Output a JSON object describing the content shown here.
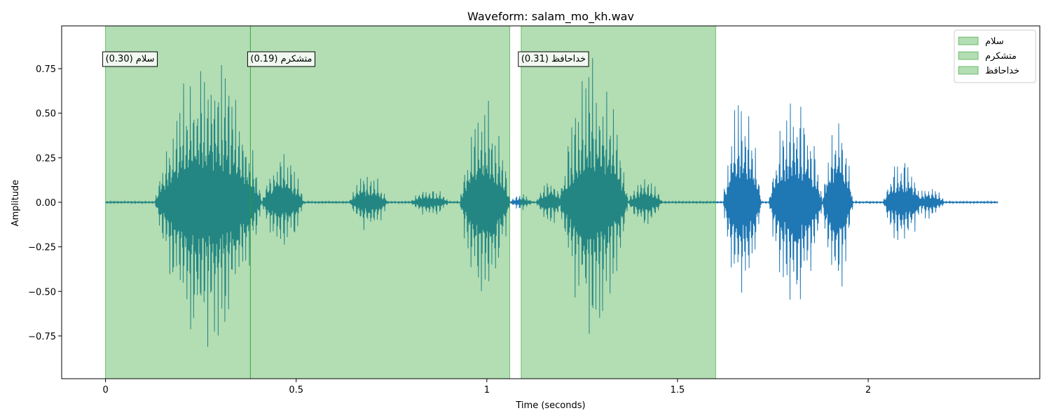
{
  "chart_data": {
    "type": "line",
    "title": "Waveform: salam_mo_kh.wav",
    "xlabel": "Time (seconds)",
    "ylabel": "Amplitude",
    "xlim": [
      -0.115,
      2.45
    ],
    "ylim": [
      -0.99,
      0.99
    ],
    "xticks": [
      {
        "value": 0,
        "label": "0"
      },
      {
        "value": 0.5,
        "label": "0.5"
      },
      {
        "value": 1,
        "label": "1"
      },
      {
        "value": 1.5,
        "label": "1.5"
      },
      {
        "value": 2,
        "label": "2"
      }
    ],
    "yticks": [
      {
        "value": -0.75,
        "label": "−0.75"
      },
      {
        "value": -0.5,
        "label": "−0.50"
      },
      {
        "value": -0.25,
        "label": "−0.25"
      },
      {
        "value": 0,
        "label": "0.00"
      },
      {
        "value": 0.25,
        "label": "0.25"
      },
      {
        "value": 0.5,
        "label": "0.50"
      },
      {
        "value": 0.75,
        "label": "0.75"
      }
    ],
    "grid": false,
    "legend_position": "top-right",
    "duration": 2.34,
    "waveform_color": "#1f77b4",
    "region_color": "#2ca02c",
    "regions": [
      {
        "label": "سلام",
        "start": 0.0,
        "end": 0.38,
        "score": "0.30",
        "annotation": "سلام (0.30)"
      },
      {
        "label": "متشکرم",
        "start": 0.38,
        "end": 1.06,
        "score": "0.19",
        "annotation": "متشکرم (0.19)"
      },
      {
        "label": "خداحافظ",
        "start": 1.09,
        "end": 1.6,
        "score": "0.31",
        "annotation": "خداحافظ (0.31)"
      }
    ],
    "bursts": [
      {
        "start": 0.13,
        "end": 0.41,
        "peak": 0.9
      },
      {
        "start": 0.41,
        "end": 0.52,
        "peak": 0.3
      },
      {
        "start": 0.64,
        "end": 0.74,
        "peak": 0.18
      },
      {
        "start": 0.8,
        "end": 0.9,
        "peak": 0.09
      },
      {
        "start": 0.93,
        "end": 1.06,
        "peak": 0.62
      },
      {
        "start": 1.06,
        "end": 1.12,
        "peak": 0.05
      },
      {
        "start": 1.13,
        "end": 1.2,
        "peak": 0.14
      },
      {
        "start": 1.19,
        "end": 1.37,
        "peak": 0.82
      },
      {
        "start": 1.37,
        "end": 1.46,
        "peak": 0.15
      },
      {
        "start": 1.62,
        "end": 1.72,
        "peak": 0.64
      },
      {
        "start": 1.74,
        "end": 1.88,
        "peak": 0.66
      },
      {
        "start": 1.88,
        "end": 1.96,
        "peak": 0.56
      },
      {
        "start": 2.04,
        "end": 2.14,
        "peak": 0.28
      },
      {
        "start": 2.12,
        "end": 2.2,
        "peak": 0.1
      }
    ]
  }
}
